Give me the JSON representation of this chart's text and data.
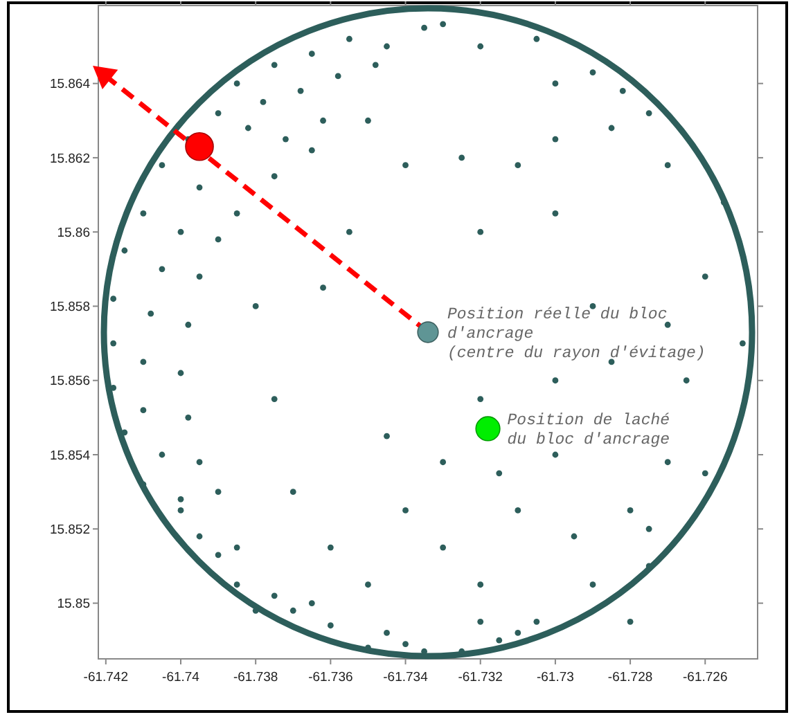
{
  "chart_data": {
    "type": "scatter",
    "xlim": [
      -61.7422,
      -61.7246
    ],
    "ylim": [
      15.8485,
      15.8661
    ],
    "xticks": [
      -61.742,
      -61.74,
      -61.738,
      -61.736,
      -61.734,
      -61.732,
      -61.73,
      -61.728,
      -61.726
    ],
    "yticks": [
      15.85,
      15.852,
      15.854,
      15.856,
      15.858,
      15.86,
      15.862,
      15.864
    ],
    "grid": false,
    "marker": "circle",
    "annotations": [
      {
        "text": "Position réelle du bloc\nd'ancrage\n(centre du rayon d'évitage)",
        "x": -61.7334,
        "y": 15.8573
      },
      {
        "text": "Position de laché\ndu bloc d'ancrage",
        "x": -61.7318,
        "y": 15.8547
      }
    ],
    "series": [
      {
        "color": "#2d5e5b",
        "x": [
          -61.7355,
          -61.7345,
          -61.7335,
          -61.733,
          -61.7365,
          -61.7375,
          -61.7385,
          -61.7378,
          -61.7368,
          -61.7358,
          -61.7348,
          -61.739,
          -61.7382,
          -61.7372,
          -61.7362,
          -61.732,
          -61.7305,
          -61.73,
          -61.729,
          -61.7282,
          -61.7275,
          -61.7255,
          -61.7398,
          -61.7405,
          -61.7395,
          -61.741,
          -61.74,
          -61.739,
          -61.7415,
          -61.7405,
          -61.7395,
          -61.7418,
          -61.7408,
          -61.7398,
          -61.7418,
          -61.741,
          -61.74,
          -61.7418,
          -61.741,
          -61.7398,
          -61.7415,
          -61.7405,
          -61.7395,
          -61.741,
          -61.74,
          -61.739,
          -61.74,
          -61.7395,
          -61.7385,
          -61.739,
          -61.7385,
          -61.7375,
          -61.738,
          -61.737,
          -61.736,
          -61.7365,
          -61.735,
          -61.734,
          -61.7345,
          -61.7335,
          -61.7325,
          -61.7315,
          -61.731,
          -61.732,
          -61.7305,
          -61.738,
          -61.7375,
          -61.737,
          -61.736,
          -61.735,
          -61.7385,
          -61.7375,
          -61.7365,
          -61.735,
          -61.734,
          -61.7355,
          -61.7362,
          -61.7345,
          -61.734,
          -61.733,
          -61.732,
          -61.7325,
          -61.731,
          -61.73,
          -61.732,
          -61.73,
          -61.7285,
          -61.727,
          -61.726,
          -61.729,
          -61.727,
          -61.725,
          -61.7265,
          -61.7285,
          -61.73,
          -61.732,
          -61.73,
          -61.727,
          -61.728,
          -61.726,
          -61.7295,
          -61.731,
          -61.729,
          -61.7275,
          -61.7275,
          -61.733,
          -61.7315,
          -61.728
        ],
        "values": [
          15.8652,
          15.865,
          15.8655,
          15.8656,
          15.8648,
          15.8645,
          15.864,
          15.8635,
          15.8638,
          15.8642,
          15.8645,
          15.8632,
          15.8628,
          15.8625,
          15.863,
          15.865,
          15.8652,
          15.864,
          15.8643,
          15.8638,
          15.8632,
          15.8608,
          15.8625,
          15.8618,
          15.8612,
          15.8605,
          15.86,
          15.8598,
          15.8595,
          15.859,
          15.8588,
          15.8582,
          15.8578,
          15.8575,
          15.857,
          15.8565,
          15.8562,
          15.8558,
          15.8552,
          15.855,
          15.8546,
          15.854,
          15.8538,
          15.8532,
          15.8528,
          15.853,
          15.8525,
          15.8518,
          15.8515,
          15.8513,
          15.8505,
          15.8502,
          15.8498,
          15.8498,
          15.8494,
          15.85,
          15.8488,
          15.8489,
          15.8492,
          15.8487,
          15.8487,
          15.849,
          15.8492,
          15.8495,
          15.8495,
          15.858,
          15.8555,
          15.853,
          15.8515,
          15.8505,
          15.8605,
          15.8615,
          15.8622,
          15.863,
          15.8618,
          15.86,
          15.8585,
          15.8545,
          15.8525,
          15.8515,
          15.8505,
          15.862,
          15.8618,
          15.8605,
          15.86,
          15.8625,
          15.8628,
          15.8618,
          15.8588,
          15.858,
          15.8575,
          15.857,
          15.856,
          15.8565,
          15.856,
          15.8555,
          15.854,
          15.8538,
          15.8525,
          15.8535,
          15.8518,
          15.8525,
          15.8505,
          15.851,
          15.852,
          15.8538,
          15.8535,
          15.8495
        ]
      },
      {
        "type": "line",
        "color": "#ff0000",
        "x": [
          -61.7334,
          -61.742
        ],
        "values": [
          15.8573,
          15.8642
        ],
        "line_style": "dashed"
      },
      {
        "type": "bubble",
        "color": "#5f9595",
        "x": [
          -61.7334
        ],
        "values": [
          15.8573
        ],
        "sizes": [
          0.55
        ]
      },
      {
        "type": "bubble",
        "color": "#ff0000",
        "x": [
          -61.7395
        ],
        "values": [
          15.8623
        ],
        "sizes": [
          1
        ]
      },
      {
        "type": "bubble",
        "color": "#00ee00",
        "x": [
          -61.7318
        ],
        "values": [
          15.8547
        ],
        "sizes": [
          0.75
        ]
      }
    ]
  }
}
